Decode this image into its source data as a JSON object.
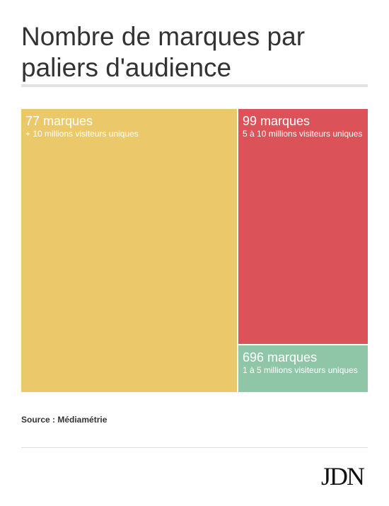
{
  "title": "Nombre de marques par paliers d'audience",
  "source": "Source : Médiamétrie",
  "logo": "JDN",
  "chart_data": {
    "type": "treemap",
    "title": "Nombre de marques par paliers d'audience",
    "items": [
      {
        "count_label": "77 marques",
        "value": 77,
        "label": "+ 10 millions visiteurs uniques",
        "color": "#ebc86a"
      },
      {
        "count_label": "99 marques",
        "value": 99,
        "label": "5 à 10 millions visiteurs uniques",
        "color": "#db5358"
      },
      {
        "count_label": "696 marques",
        "value": 696,
        "label": "1 à 5 millions visiteurs uniques",
        "color": "#8fc6a8"
      }
    ]
  }
}
